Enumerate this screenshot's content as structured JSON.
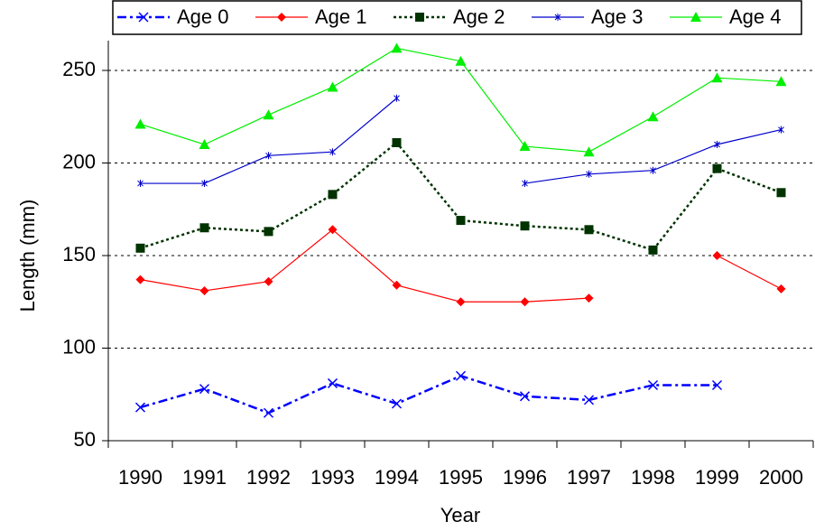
{
  "chart_data": {
    "type": "line",
    "x_label": "Year",
    "y_label": "Length (mm)",
    "categories": [
      "1990",
      "1991",
      "1992",
      "1993",
      "1994",
      "1995",
      "1996",
      "1997",
      "1998",
      "1999",
      "2000"
    ],
    "series": [
      {
        "name": "Age 0",
        "color": "#0000ff",
        "marker": "x",
        "dash": "dashdot",
        "values": [
          68,
          78,
          65,
          81,
          70,
          85,
          74,
          72,
          80,
          80,
          null
        ]
      },
      {
        "name": "Age 1",
        "color": "#ff0000",
        "marker": "diamond",
        "dash": "solid",
        "values": [
          137,
          131,
          136,
          164,
          134,
          125,
          125,
          127,
          null,
          150,
          132
        ]
      },
      {
        "name": "Age 2",
        "color": "#003300",
        "marker": "square",
        "dash": "dotted",
        "values": [
          154,
          165,
          163,
          183,
          211,
          169,
          166,
          164,
          153,
          197,
          184
        ]
      },
      {
        "name": "Age 3",
        "color": "#0000cc",
        "marker": "star",
        "dash": "solid",
        "values": [
          189,
          189,
          204,
          206,
          235,
          null,
          189,
          194,
          196,
          210,
          218
        ]
      },
      {
        "name": "Age 4",
        "color": "#00ee00",
        "marker": "triangle",
        "dash": "solid",
        "values": [
          221,
          210,
          226,
          241,
          262,
          255,
          209,
          206,
          225,
          246,
          244
        ]
      }
    ],
    "ylim": [
      50,
      250
    ],
    "yticks": [
      50,
      100,
      150,
      200,
      250
    ],
    "grid": true
  }
}
